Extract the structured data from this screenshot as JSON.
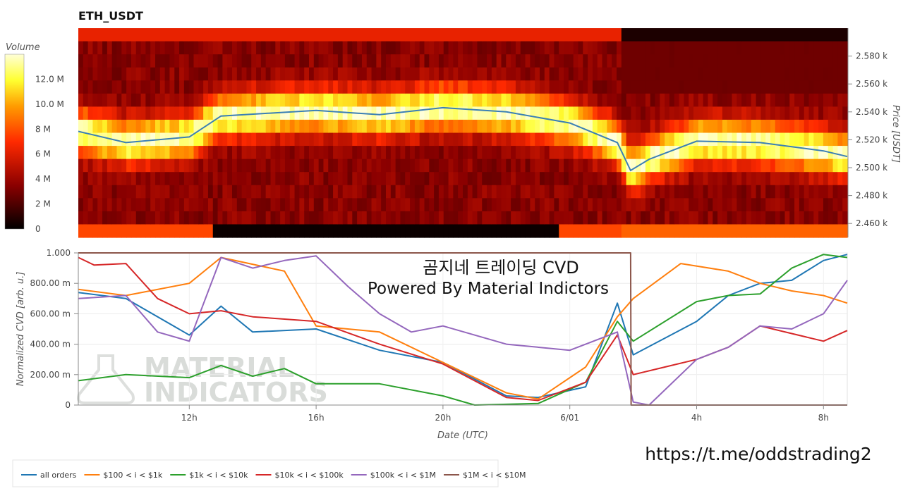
{
  "chart_data": [
    {
      "type": "heatmap",
      "title": "ETH_USDT",
      "ylabel": "Price [USDT]",
      "y_ticks": [
        "2.460 k",
        "2.480 k",
        "2.500 k",
        "2.520 k",
        "2.540 k",
        "2.560 k",
        "2.580 k"
      ],
      "ylim": [
        2450,
        2600
      ],
      "colorbar": {
        "title": "Volume",
        "ticks": [
          "0",
          "2 M",
          "4 M",
          "6 M",
          "8 M",
          "10.0 M",
          "12.0 M"
        ],
        "range": [
          0,
          14
        ],
        "colors": [
          "#000000",
          "#8b0000",
          "#ff2a00",
          "#ff9a00",
          "#ffff30",
          "#ffffd8"
        ]
      },
      "price_line": {
        "color": "#3a7fb5",
        "times": [
          "2021-05-31T08:30",
          "2021-05-31T10:00",
          "2021-05-31T12:00",
          "2021-05-31T13:00",
          "2021-05-31T16:00",
          "2021-05-31T18:00",
          "2021-05-31T20:00",
          "2021-05-31T22:00",
          "2021-06-01T00:00",
          "2021-06-01T01:30",
          "2021-06-01T01:55",
          "2021-06-01T02:30",
          "2021-06-01T04:00",
          "2021-06-01T06:00",
          "2021-06-01T08:00",
          "2021-06-01T08:45"
        ],
        "prices": [
          2526,
          2518,
          2522,
          2537,
          2541,
          2538,
          2543,
          2540,
          2532,
          2518,
          2498,
          2506,
          2519,
          2518,
          2512,
          2508
        ]
      }
    },
    {
      "type": "line",
      "ylabel": "Normalized CVD [arb. u.]",
      "xlabel": "Date (UTC)",
      "y_ticks": [
        "0",
        "200.00 m",
        "400.00 m",
        "600.00 m",
        "800.00 m",
        "1.000"
      ],
      "ylim": [
        0,
        1
      ],
      "x_ticks": [
        "12h",
        "16h",
        "20h",
        "6/01",
        "4h",
        "8h"
      ],
      "series": [
        {
          "name": "all orders",
          "color": "#1f77b4",
          "x": [
            "2021-05-31T08:30",
            "2021-05-31T10:00",
            "2021-05-31T12:00",
            "2021-05-31T13:00",
            "2021-05-31T14:00",
            "2021-05-31T16:00",
            "2021-05-31T18:00",
            "2021-05-31T20:00",
            "2021-05-31T22:00",
            "2021-05-31T23:00",
            "2021-06-01T00:30",
            "2021-06-01T01:30",
            "2021-06-01T02:00",
            "2021-06-01T04:00",
            "2021-06-01T05:00",
            "2021-06-01T06:00",
            "2021-06-01T07:00",
            "2021-06-01T08:00",
            "2021-06-01T08:45"
          ],
          "y": [
            0.74,
            0.7,
            0.46,
            0.65,
            0.48,
            0.5,
            0.36,
            0.28,
            0.06,
            0.05,
            0.12,
            0.67,
            0.33,
            0.55,
            0.72,
            0.8,
            0.82,
            0.95,
            0.99
          ]
        },
        {
          "name": "$100 < i < $1k",
          "color": "#ff7f0e",
          "x": [
            "2021-05-31T08:30",
            "2021-05-31T10:00",
            "2021-05-31T12:00",
            "2021-05-31T13:00",
            "2021-05-31T15:00",
            "2021-05-31T16:00",
            "2021-05-31T18:00",
            "2021-05-31T20:00",
            "2021-05-31T22:00",
            "2021-05-31T23:00",
            "2021-06-01T00:30",
            "2021-06-01T01:30",
            "2021-06-01T02:00",
            "2021-06-01T03:30",
            "2021-06-01T05:00",
            "2021-06-01T06:00",
            "2021-06-01T07:00",
            "2021-06-01T08:00",
            "2021-06-01T08:45"
          ],
          "y": [
            0.76,
            0.72,
            0.8,
            0.97,
            0.88,
            0.52,
            0.48,
            0.28,
            0.08,
            0.04,
            0.25,
            0.58,
            0.7,
            0.93,
            0.88,
            0.8,
            0.75,
            0.72,
            0.67
          ]
        },
        {
          "name": "$1k < i < $10k",
          "color": "#2ca02c",
          "x": [
            "2021-05-31T08:30",
            "2021-05-31T10:00",
            "2021-05-31T12:00",
            "2021-05-31T13:00",
            "2021-05-31T14:00",
            "2021-05-31T15:00",
            "2021-05-31T16:00",
            "2021-05-31T18:00",
            "2021-05-31T20:00",
            "2021-05-31T21:00",
            "2021-05-31T23:00",
            "2021-06-01T00:30",
            "2021-06-01T01:30",
            "2021-06-01T02:00",
            "2021-06-01T04:00",
            "2021-06-01T05:00",
            "2021-06-01T06:00",
            "2021-06-01T07:00",
            "2021-06-01T08:00",
            "2021-06-01T08:45"
          ],
          "y": [
            0.16,
            0.2,
            0.18,
            0.26,
            0.19,
            0.24,
            0.14,
            0.14,
            0.06,
            0.0,
            0.01,
            0.15,
            0.55,
            0.42,
            0.68,
            0.72,
            0.73,
            0.9,
            0.99,
            0.97
          ]
        },
        {
          "name": "$10k < i < $100k",
          "color": "#d62728",
          "x": [
            "2021-05-31T08:30",
            "2021-05-31T09:00",
            "2021-05-31T10:00",
            "2021-05-31T11:00",
            "2021-05-31T12:00",
            "2021-05-31T13:00",
            "2021-05-31T14:00",
            "2021-05-31T16:00",
            "2021-05-31T18:00",
            "2021-05-31T20:00",
            "2021-05-31T22:00",
            "2021-05-31T23:00",
            "2021-06-01T00:30",
            "2021-06-01T01:30",
            "2021-06-01T02:00",
            "2021-06-01T03:00",
            "2021-06-01T04:00",
            "2021-06-01T05:00",
            "2021-06-01T06:00",
            "2021-06-01T07:00",
            "2021-06-01T08:00",
            "2021-06-01T08:45"
          ],
          "y": [
            0.97,
            0.92,
            0.93,
            0.7,
            0.6,
            0.62,
            0.58,
            0.55,
            0.4,
            0.27,
            0.05,
            0.03,
            0.15,
            0.46,
            0.2,
            0.25,
            0.3,
            0.38,
            0.52,
            0.47,
            0.42,
            0.49
          ]
        },
        {
          "name": "$100k < i < $1M",
          "color": "#9467bd",
          "x": [
            "2021-05-31T08:30",
            "2021-05-31T10:00",
            "2021-05-31T11:00",
            "2021-05-31T12:00",
            "2021-05-31T13:00",
            "2021-05-31T14:00",
            "2021-05-31T15:00",
            "2021-05-31T16:00",
            "2021-05-31T17:00",
            "2021-05-31T18:00",
            "2021-05-31T19:00",
            "2021-05-31T20:00",
            "2021-05-31T22:00",
            "2021-06-01T00:00",
            "2021-06-01T01:30",
            "2021-06-01T02:00",
            "2021-06-01T02:30",
            "2021-06-01T04:00",
            "2021-06-01T05:00",
            "2021-06-01T06:00",
            "2021-06-01T07:00",
            "2021-06-01T08:00",
            "2021-06-01T08:45"
          ],
          "y": [
            0.7,
            0.72,
            0.48,
            0.42,
            0.97,
            0.9,
            0.95,
            0.98,
            0.78,
            0.6,
            0.48,
            0.52,
            0.4,
            0.36,
            0.48,
            0.02,
            0.0,
            0.3,
            0.38,
            0.52,
            0.5,
            0.6,
            0.82
          ]
        },
        {
          "name": "$1M < i < $10M",
          "color": "#8c564b",
          "x": [
            "2021-05-31T08:30",
            "2021-06-01T01:55",
            "2021-06-01T01:56",
            "2021-06-01T08:45"
          ],
          "y": [
            1.0,
            1.0,
            0.0,
            0.0
          ]
        }
      ]
    }
  ],
  "overlay": {
    "line1": "곰지네 트레이딩 CVD",
    "line2": "Powered By Material Indictors",
    "link": "https://t.me/oddstrading2",
    "watermark_line1": "MATERIAL",
    "watermark_line2": "INDICATORS"
  }
}
